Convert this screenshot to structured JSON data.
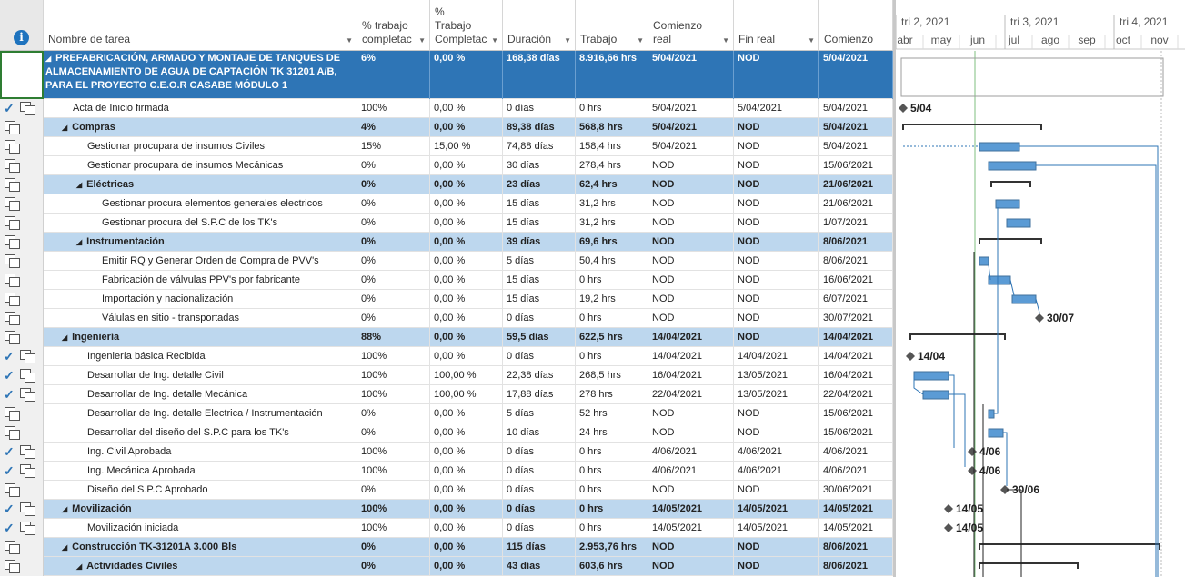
{
  "columns": [
    {
      "key": "name",
      "label": "Nombre de tarea",
      "dropdown": true
    },
    {
      "key": "pct",
      "label": "% trabajo completado",
      "dropdown": true
    },
    {
      "key": "pctw",
      "label": "% Trabajo Completado",
      "dropdown": true
    },
    {
      "key": "dur",
      "label": "Duración",
      "dropdown": true
    },
    {
      "key": "work",
      "label": "Trabajo",
      "dropdown": true
    },
    {
      "key": "start_real",
      "label": "Comienzo real",
      "dropdown": true
    },
    {
      "key": "end_real",
      "label": "Fin real",
      "dropdown": true
    },
    {
      "key": "start",
      "label": "Comienzo",
      "dropdown": false
    }
  ],
  "header_lines": {
    "name": [
      "Nombre de tarea"
    ],
    "pct": [
      "% trabajo",
      "completac"
    ],
    "pctw": [
      "%",
      "Trabajo",
      "Completac"
    ],
    "dur": [
      "Duración"
    ],
    "work": [
      "Trabajo"
    ],
    "start_real": [
      "Comienzo",
      "real"
    ],
    "end_real": [
      "Fin real"
    ],
    "start": [
      "Comienzo"
    ]
  },
  "rows": [
    {
      "type": "top",
      "icon": "none",
      "name": "PREFABRICACIÓN, ARMADO Y MONTAJE DE TANQUES DE ALMACENAMIENTO DE AGUA DE CAPTACIÓN TK 31201 A/B, PARA EL PROYECTO C.E.O.R CASABE MÓDULO 1",
      "pct": "6%",
      "pctw": "0,00 %",
      "dur": "168,38 días",
      "work": "8.916,66 hrs",
      "start_real": "5/04/2021",
      "end_real": "NOD",
      "start": "5/04/2021"
    },
    {
      "type": "task",
      "level": 1,
      "icon": "check",
      "name": "Acta de Inicio firmada",
      "pct": "100%",
      "pctw": "0,00 %",
      "dur": "0 días",
      "work": "0 hrs",
      "start_real": "5/04/2021",
      "end_real": "5/04/2021",
      "start": "5/04/2021"
    },
    {
      "type": "summary",
      "level": 1,
      "icon": "task",
      "name": "Compras",
      "pct": "4%",
      "pctw": "0,00 %",
      "dur": "89,38 días",
      "work": "568,8 hrs",
      "start_real": "5/04/2021",
      "end_real": "NOD",
      "start": "5/04/2021"
    },
    {
      "type": "task",
      "level": 2,
      "icon": "task",
      "name": "Gestionar procupara de insumos Civiles",
      "pct": "15%",
      "pctw": "15,00 %",
      "dur": "74,88 días",
      "work": "158,4 hrs",
      "start_real": "5/04/2021",
      "end_real": "NOD",
      "start": "5/04/2021"
    },
    {
      "type": "task",
      "level": 2,
      "icon": "task",
      "name": "Gestionar procupara de insumos Mecánicas",
      "pct": "0%",
      "pctw": "0,00 %",
      "dur": "30 días",
      "work": "278,4 hrs",
      "start_real": "NOD",
      "end_real": "NOD",
      "start": "15/06/2021"
    },
    {
      "type": "summary",
      "level": 2,
      "icon": "task",
      "name": "Eléctricas",
      "pct": "0%",
      "pctw": "0,00 %",
      "dur": "23 días",
      "work": "62,4 hrs",
      "start_real": "NOD",
      "end_real": "NOD",
      "start": "21/06/2021"
    },
    {
      "type": "task",
      "level": 3,
      "icon": "task",
      "name": "Gestionar procura elementos generales electricos",
      "pct": "0%",
      "pctw": "0,00 %",
      "dur": "15 días",
      "work": "31,2 hrs",
      "start_real": "NOD",
      "end_real": "NOD",
      "start": "21/06/2021"
    },
    {
      "type": "task",
      "level": 3,
      "icon": "task",
      "name": "Gestionar procura del S.P.C de los TK's",
      "pct": "0%",
      "pctw": "0,00 %",
      "dur": "15 días",
      "work": "31,2 hrs",
      "start_real": "NOD",
      "end_real": "NOD",
      "start": "1/07/2021"
    },
    {
      "type": "summary",
      "level": 2,
      "icon": "task",
      "name": "Instrumentación",
      "pct": "0%",
      "pctw": "0,00 %",
      "dur": "39 días",
      "work": "69,6 hrs",
      "start_real": "NOD",
      "end_real": "NOD",
      "start": "8/06/2021"
    },
    {
      "type": "task",
      "level": 3,
      "icon": "task",
      "name": "Emitir RQ y Generar Orden de Compra de PVV's",
      "pct": "0%",
      "pctw": "0,00 %",
      "dur": "5 días",
      "work": "50,4 hrs",
      "start_real": "NOD",
      "end_real": "NOD",
      "start": "8/06/2021"
    },
    {
      "type": "task",
      "level": 3,
      "icon": "task",
      "name": "Fabricación de válvulas PPV's por fabricante",
      "pct": "0%",
      "pctw": "0,00 %",
      "dur": "15 días",
      "work": "0 hrs",
      "start_real": "NOD",
      "end_real": "NOD",
      "start": "16/06/2021"
    },
    {
      "type": "task",
      "level": 3,
      "icon": "task",
      "name": "Importación y nacionalización",
      "pct": "0%",
      "pctw": "0,00 %",
      "dur": "15 días",
      "work": "19,2 hrs",
      "start_real": "NOD",
      "end_real": "NOD",
      "start": "6/07/2021"
    },
    {
      "type": "task",
      "level": 3,
      "icon": "task",
      "name": "Válulas en sitio - transportadas",
      "pct": "0%",
      "pctw": "0,00 %",
      "dur": "0 días",
      "work": "0 hrs",
      "start_real": "NOD",
      "end_real": "NOD",
      "start": "30/07/2021"
    },
    {
      "type": "summary",
      "level": 1,
      "icon": "task",
      "name": "Ingeniería",
      "pct": "88%",
      "pctw": "0,00 %",
      "dur": "59,5 días",
      "work": "622,5 hrs",
      "start_real": "14/04/2021",
      "end_real": "NOD",
      "start": "14/04/2021"
    },
    {
      "type": "task",
      "level": 2,
      "icon": "check",
      "name": "Ingeniería básica Recibida",
      "pct": "100%",
      "pctw": "0,00 %",
      "dur": "0 días",
      "work": "0 hrs",
      "start_real": "14/04/2021",
      "end_real": "14/04/2021",
      "start": "14/04/2021"
    },
    {
      "type": "task",
      "level": 2,
      "icon": "check",
      "name": "Desarrollar de Ing. detalle Civil",
      "pct": "100%",
      "pctw": "100,00 %",
      "dur": "22,38 días",
      "work": "268,5 hrs",
      "start_real": "16/04/2021",
      "end_real": "13/05/2021",
      "start": "16/04/2021"
    },
    {
      "type": "task",
      "level": 2,
      "icon": "check",
      "name": "Desarrollar de Ing. detalle Mecánica",
      "pct": "100%",
      "pctw": "100,00 %",
      "dur": "17,88 días",
      "work": "278 hrs",
      "start_real": "22/04/2021",
      "end_real": "13/05/2021",
      "start": "22/04/2021"
    },
    {
      "type": "task",
      "level": 2,
      "icon": "task",
      "name": "Desarrollar de Ing. detalle Electrica / Instrumentación",
      "pct": "0%",
      "pctw": "0,00 %",
      "dur": "5 días",
      "work": "52 hrs",
      "start_real": "NOD",
      "end_real": "NOD",
      "start": "15/06/2021"
    },
    {
      "type": "task",
      "level": 2,
      "icon": "task",
      "name": "Desarrollar del diseño del S.P.C para los TK's",
      "pct": "0%",
      "pctw": "0,00 %",
      "dur": "10 días",
      "work": "24 hrs",
      "start_real": "NOD",
      "end_real": "NOD",
      "start": "15/06/2021"
    },
    {
      "type": "task",
      "level": 2,
      "icon": "check",
      "name": "Ing. Civil Aprobada",
      "pct": "100%",
      "pctw": "0,00 %",
      "dur": "0 días",
      "work": "0 hrs",
      "start_real": "4/06/2021",
      "end_real": "4/06/2021",
      "start": "4/06/2021"
    },
    {
      "type": "task",
      "level": 2,
      "icon": "check",
      "name": "Ing. Mecánica Aprobada",
      "pct": "100%",
      "pctw": "0,00 %",
      "dur": "0 días",
      "work": "0 hrs",
      "start_real": "4/06/2021",
      "end_real": "4/06/2021",
      "start": "4/06/2021"
    },
    {
      "type": "task",
      "level": 2,
      "icon": "task",
      "name": "Diseño del S.P.C Aprobado",
      "pct": "0%",
      "pctw": "0,00 %",
      "dur": "0 días",
      "work": "0 hrs",
      "start_real": "NOD",
      "end_real": "NOD",
      "start": "30/06/2021"
    },
    {
      "type": "summary",
      "level": 1,
      "icon": "check",
      "name": "Movilización",
      "pct": "100%",
      "pctw": "0,00 %",
      "dur": "0 días",
      "work": "0 hrs",
      "start_real": "14/05/2021",
      "end_real": "14/05/2021",
      "start": "14/05/2021"
    },
    {
      "type": "task",
      "level": 2,
      "icon": "check",
      "name": "Movilización iniciada",
      "pct": "100%",
      "pctw": "0,00 %",
      "dur": "0 días",
      "work": "0 hrs",
      "start_real": "14/05/2021",
      "end_real": "14/05/2021",
      "start": "14/05/2021"
    },
    {
      "type": "summary",
      "level": 1,
      "icon": "task",
      "name": "Construcción TK-31201A 3.000 Bls",
      "pct": "0%",
      "pctw": "0,00 %",
      "dur": "115 días",
      "work": "2.953,76 hrs",
      "start_real": "NOD",
      "end_real": "NOD",
      "start": "8/06/2021"
    },
    {
      "type": "summary",
      "level": 2,
      "icon": "task",
      "name": "Actividades Civiles",
      "pct": "0%",
      "pctw": "0,00 %",
      "dur": "43 días",
      "work": "603,6 hrs",
      "start_real": "NOD",
      "end_real": "NOD",
      "start": "8/06/2021"
    }
  ],
  "timeline": {
    "quarters": [
      "tri 2, 2021",
      "tri 3, 2021",
      "tri 4, 2021"
    ],
    "months": [
      "abr",
      "may",
      "jun",
      "jul",
      "ago",
      "sep",
      "oct",
      "nov"
    ]
  },
  "gantt_labels": [
    "5/04",
    "30/07",
    "14/04",
    "4/06",
    "4/06",
    "30/06",
    "14/05",
    "14/05"
  ],
  "colors": {
    "summary_row": "#bdd7ee",
    "top_row": "#2e75b6",
    "bar": "#5b9bd5",
    "check": "#2e75b6"
  }
}
